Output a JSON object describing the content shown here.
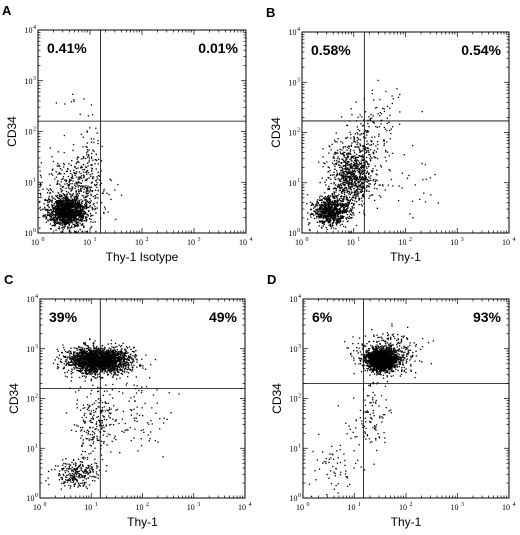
{
  "chart_data": [
    {
      "type": "scatter",
      "panel": "A",
      "xlabel": "Thy-1 Isotype",
      "ylabel": "CD34",
      "x_scale": "log",
      "y_scale": "log",
      "xlim": [
        1,
        10000
      ],
      "ylim": [
        1,
        10000
      ],
      "x_ticks": [
        {
          "base": "10",
          "exp": "0"
        },
        {
          "base": "10",
          "exp": "1"
        },
        {
          "base": "10",
          "exp": "2"
        },
        {
          "base": "10",
          "exp": "3"
        },
        {
          "base": "10",
          "exp": "4"
        }
      ],
      "y_ticks": [
        {
          "base": "10",
          "exp": "0"
        },
        {
          "base": "10",
          "exp": "1"
        },
        {
          "base": "10",
          "exp": "2"
        },
        {
          "base": "10",
          "exp": "3"
        },
        {
          "base": "10",
          "exp": "4"
        }
      ],
      "gate": {
        "x": 16,
        "y": 160
      },
      "quadrant_labels": {
        "upper_left": "0.41%",
        "upper_right": "0.01%"
      },
      "clusters": [
        {
          "center": [
            3.5,
            2.7
          ],
          "spread": [
            0.17,
            0.14
          ],
          "count": 1300
        },
        {
          "center": [
            5,
            6
          ],
          "spread": [
            0.3,
            0.35
          ],
          "count": 500
        },
        {
          "center": [
            9,
            20
          ],
          "spread": [
            0.12,
            0.35
          ],
          "count": 90
        },
        {
          "center": [
            6,
            400
          ],
          "spread": [
            0.2,
            0.25
          ],
          "count": 10
        }
      ]
    },
    {
      "type": "scatter",
      "panel": "B",
      "xlabel": "Thy-1",
      "ylabel": "CD34",
      "x_scale": "log",
      "y_scale": "log",
      "xlim": [
        1,
        10000
      ],
      "ylim": [
        1,
        10000
      ],
      "x_ticks": [
        {
          "base": "10",
          "exp": "0"
        },
        {
          "base": "10",
          "exp": "1"
        },
        {
          "base": "10",
          "exp": "2"
        },
        {
          "base": "10",
          "exp": "3"
        },
        {
          "base": "10",
          "exp": "4"
        }
      ],
      "y_ticks": [
        {
          "base": "10",
          "exp": "0"
        },
        {
          "base": "10",
          "exp": "1"
        },
        {
          "base": "10",
          "exp": "2"
        },
        {
          "base": "10",
          "exp": "3"
        },
        {
          "base": "10",
          "exp": "4"
        }
      ],
      "gate": {
        "x": 16,
        "y": 170
      },
      "quadrant_labels": {
        "upper_left": "0.58%",
        "upper_right": "0.54%"
      },
      "clusters": [
        {
          "center": [
            3.5,
            2.8
          ],
          "spread": [
            0.17,
            0.14
          ],
          "count": 800
        },
        {
          "center": [
            9,
            15
          ],
          "spread": [
            0.22,
            0.33
          ],
          "count": 900
        },
        {
          "center": [
            20,
            80
          ],
          "spread": [
            0.25,
            0.3
          ],
          "count": 140
        },
        {
          "center": [
            40,
            500
          ],
          "spread": [
            0.3,
            0.25
          ],
          "count": 22
        },
        {
          "center": [
            100,
            10
          ],
          "spread": [
            0.3,
            0.35
          ],
          "count": 30
        }
      ]
    },
    {
      "type": "scatter",
      "panel": "C",
      "xlabel": "Thy-1",
      "ylabel": "CD34",
      "x_scale": "log",
      "y_scale": "log",
      "xlim": [
        1,
        10000
      ],
      "ylim": [
        1,
        10000
      ],
      "x_ticks": [
        {
          "base": "10",
          "exp": "0"
        },
        {
          "base": "10",
          "exp": "1"
        },
        {
          "base": "10",
          "exp": "2"
        },
        {
          "base": "10",
          "exp": "3"
        },
        {
          "base": "10",
          "exp": "4"
        }
      ],
      "y_ticks": [
        {
          "base": "10",
          "exp": "0"
        },
        {
          "base": "10",
          "exp": "1"
        },
        {
          "base": "10",
          "exp": "2"
        },
        {
          "base": "10",
          "exp": "3"
        },
        {
          "base": "10",
          "exp": "4"
        }
      ],
      "gate": {
        "x": 15,
        "y": 160
      },
      "quadrant_labels": {
        "upper_left": "39%",
        "upper_right": "49%"
      },
      "clusters": [
        {
          "center": [
            14,
            600
          ],
          "spread": [
            0.3,
            0.13
          ],
          "count": 2300
        },
        {
          "center": [
            5,
            3.2
          ],
          "spread": [
            0.2,
            0.14
          ],
          "count": 260
        },
        {
          "center": [
            12,
            30
          ],
          "spread": [
            0.2,
            0.4
          ],
          "count": 220
        },
        {
          "center": [
            70,
            50
          ],
          "spread": [
            0.35,
            0.4
          ],
          "count": 90
        }
      ]
    },
    {
      "type": "scatter",
      "panel": "D",
      "xlabel": "Thy-1",
      "ylabel": "CD34",
      "x_scale": "log",
      "y_scale": "log",
      "xlim": [
        1,
        10000
      ],
      "ylim": [
        1,
        10000
      ],
      "x_ticks": [
        {
          "base": "10",
          "exp": "0"
        },
        {
          "base": "10",
          "exp": "1"
        },
        {
          "base": "10",
          "exp": "2"
        },
        {
          "base": "10",
          "exp": "3"
        },
        {
          "base": "10",
          "exp": "4"
        }
      ],
      "y_ticks": [
        {
          "base": "10",
          "exp": "0"
        },
        {
          "base": "10",
          "exp": "1"
        },
        {
          "base": "10",
          "exp": "2"
        },
        {
          "base": "10",
          "exp": "3"
        },
        {
          "base": "10",
          "exp": "4"
        }
      ],
      "gate": {
        "x": 15,
        "y": 200
      },
      "quadrant_labels": {
        "upper_left": "6%",
        "upper_right": "93%"
      },
      "clusters": [
        {
          "center": [
            33,
            600
          ],
          "spread": [
            0.13,
            0.1
          ],
          "count": 2100
        },
        {
          "center": [
            40,
            800
          ],
          "spread": [
            0.3,
            0.2
          ],
          "count": 500
        },
        {
          "center": [
            20,
            40
          ],
          "spread": [
            0.2,
            0.4
          ],
          "count": 110
        },
        {
          "center": [
            4,
            4
          ],
          "spread": [
            0.2,
            0.25
          ],
          "count": 60
        }
      ]
    }
  ],
  "style": {
    "ink": "#000000",
    "background": "#ffffff"
  }
}
